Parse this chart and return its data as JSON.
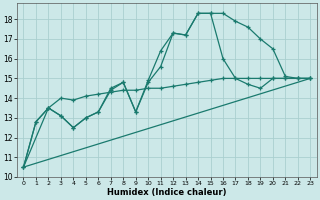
{
  "xlabel": "Humidex (Indice chaleur)",
  "bg_color": "#cce8e8",
  "grid_color": "#aacfcf",
  "line_color": "#1a7a6e",
  "xlim": [
    -0.5,
    23.5
  ],
  "ylim": [
    10,
    18.8
  ],
  "yticks": [
    10,
    11,
    12,
    13,
    14,
    15,
    16,
    17,
    18
  ],
  "xticks": [
    0,
    1,
    2,
    3,
    4,
    5,
    6,
    7,
    8,
    9,
    10,
    11,
    12,
    13,
    14,
    15,
    16,
    17,
    18,
    19,
    20,
    21,
    22,
    23
  ],
  "line1_x": [
    0,
    1,
    2,
    3,
    4,
    5,
    6,
    7,
    8,
    9,
    10,
    11,
    12,
    13,
    14,
    15,
    16,
    17,
    18,
    19,
    20,
    21,
    22,
    23
  ],
  "line1_y": [
    10.5,
    12.8,
    13.5,
    13.1,
    12.5,
    13.0,
    13.3,
    14.5,
    14.8,
    13.3,
    14.9,
    16.4,
    17.3,
    17.2,
    18.3,
    18.3,
    18.3,
    17.9,
    17.6,
    17.0,
    16.5,
    15.1,
    15.0,
    15.0
  ],
  "line2_x": [
    0,
    1,
    2,
    3,
    4,
    5,
    6,
    7,
    8,
    9,
    10,
    11,
    12,
    13,
    14,
    15,
    16,
    17,
    18,
    19,
    20,
    21,
    22,
    23
  ],
  "line2_y": [
    10.5,
    12.8,
    13.5,
    13.1,
    12.5,
    13.0,
    13.3,
    14.4,
    14.8,
    13.3,
    14.8,
    15.6,
    17.3,
    17.2,
    18.3,
    18.3,
    16.0,
    15.0,
    14.7,
    14.5,
    15.0,
    15.0,
    15.0,
    15.0
  ],
  "line3_x": [
    0,
    2,
    3,
    4,
    5,
    6,
    7,
    8,
    9,
    10,
    11,
    12,
    13,
    14,
    15,
    16,
    17,
    18,
    19,
    20,
    21,
    22,
    23
  ],
  "line3_y": [
    10.5,
    13.5,
    14.0,
    13.9,
    14.1,
    14.2,
    14.3,
    14.4,
    14.4,
    14.5,
    14.5,
    14.6,
    14.7,
    14.8,
    14.9,
    15.0,
    15.0,
    15.0,
    15.0,
    15.0,
    15.0,
    15.0,
    15.0
  ],
  "line4_x": [
    0,
    23
  ],
  "line4_y": [
    10.5,
    15.0
  ]
}
